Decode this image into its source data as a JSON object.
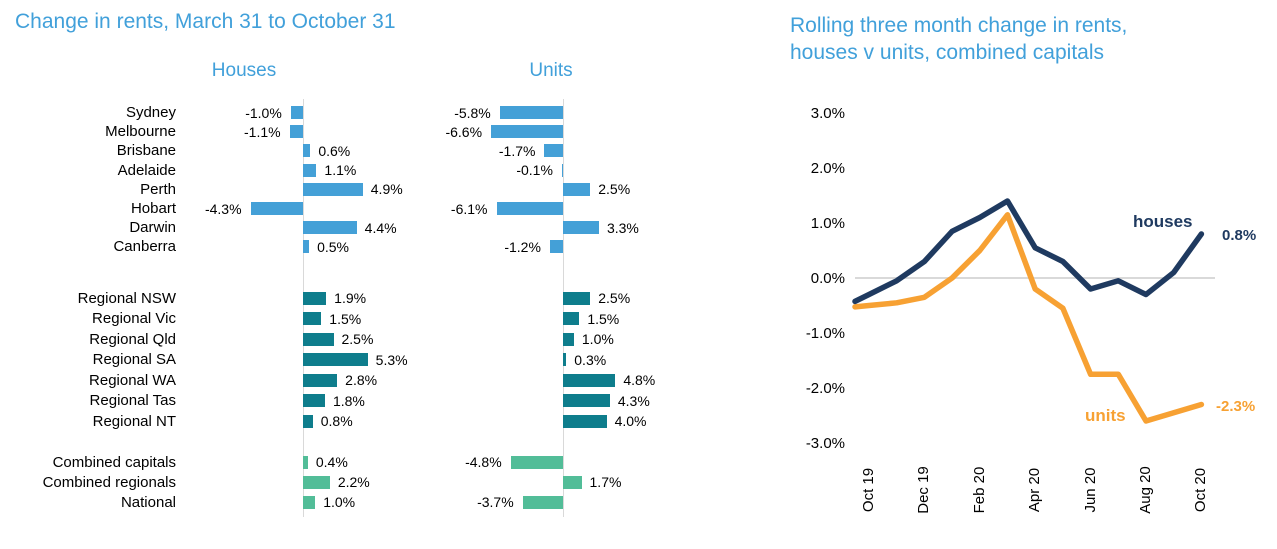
{
  "theme": {
    "title_color": "#41A0DA",
    "gridline_color": "#D9D9D9",
    "text_color": "#000000",
    "background": "#FFFFFF"
  },
  "chart_data": [
    {
      "type": "bar",
      "orientation": "horizontal",
      "title": "Change in rents, March 31 to October 31",
      "value_unit": "%",
      "columns": {
        "houses": "Houses",
        "units": "Units"
      },
      "groups": [
        {
          "group": "capital-cities",
          "color": "#44A0D7",
          "rows": [
            {
              "category": "Sydney",
              "houses": -1.0,
              "units": -5.8
            },
            {
              "category": "Melbourne",
              "houses": -1.1,
              "units": -6.6
            },
            {
              "category": "Brisbane",
              "houses": 0.6,
              "units": -1.7
            },
            {
              "category": "Adelaide",
              "houses": 1.1,
              "units": -0.1
            },
            {
              "category": "Perth",
              "houses": 4.9,
              "units": 2.5
            },
            {
              "category": "Hobart",
              "houses": -4.3,
              "units": -6.1
            },
            {
              "category": "Darwin",
              "houses": 4.4,
              "units": 3.3
            },
            {
              "category": "Canberra",
              "houses": 0.5,
              "units": -1.2
            }
          ]
        },
        {
          "group": "regional-states",
          "color": "#0E7D8C",
          "rows": [
            {
              "category": "Regional NSW",
              "houses": 1.9,
              "units": 2.5
            },
            {
              "category": "Regional Vic",
              "houses": 1.5,
              "units": 1.5
            },
            {
              "category": "Regional Qld",
              "houses": 2.5,
              "units": 1.0
            },
            {
              "category": "Regional SA",
              "houses": 5.3,
              "units": 0.3
            },
            {
              "category": "Regional WA",
              "houses": 2.8,
              "units": 4.8
            },
            {
              "category": "Regional Tas",
              "houses": 1.8,
              "units": 4.3
            },
            {
              "category": "Regional NT",
              "houses": 0.8,
              "units": 4.0
            }
          ]
        },
        {
          "group": "combined",
          "color": "#52BD98",
          "rows": [
            {
              "category": "Combined capitals",
              "houses": 0.4,
              "units": -4.8
            },
            {
              "category": "Combined regionals",
              "houses": 2.2,
              "units": 1.7
            },
            {
              "category": "National",
              "houses": 1.0,
              "units": -3.7
            }
          ]
        }
      ]
    },
    {
      "type": "line",
      "title": "Rolling three month change in rents, houses v units, combined capitals",
      "title_lines": [
        "Rolling three month change in rents,",
        "houses v units, combined capitals"
      ],
      "x": [
        "Oct 19",
        "Nov 19",
        "Dec 19",
        "Jan 20",
        "Feb 20",
        "Mar 20",
        "Apr 20",
        "May 20",
        "Jun 20",
        "Jul 20",
        "Aug 20",
        "Sep 20",
        "Oct 20"
      ],
      "x_tick_labels": [
        "Oct 19",
        "Dec 19",
        "Feb 20",
        "Apr 20",
        "Jun 20",
        "Aug 20",
        "Oct 20"
      ],
      "ylim": [
        -3.0,
        3.0
      ],
      "ytick_step": 1.0,
      "ytick_labels": [
        "3.0%",
        "2.0%",
        "1.0%",
        "0.0%",
        "-1.0%",
        "-2.0%",
        "-3.0%"
      ],
      "gridlines": "zero-only",
      "series": [
        {
          "name": "houses",
          "color": "#1F3A60",
          "end_label": "0.8%",
          "values": [
            -0.3,
            -0.05,
            0.3,
            0.85,
            1.1,
            1.4,
            0.55,
            0.3,
            -0.2,
            -0.05,
            -0.3,
            0.1,
            0.8
          ]
        },
        {
          "name": "units",
          "color": "#F7A133",
          "end_label": "-2.3%",
          "values": [
            -0.5,
            -0.45,
            -0.35,
            0.0,
            0.5,
            1.15,
            -0.2,
            -0.55,
            -1.75,
            -1.75,
            -2.6,
            -2.45,
            -2.3
          ]
        }
      ]
    }
  ]
}
